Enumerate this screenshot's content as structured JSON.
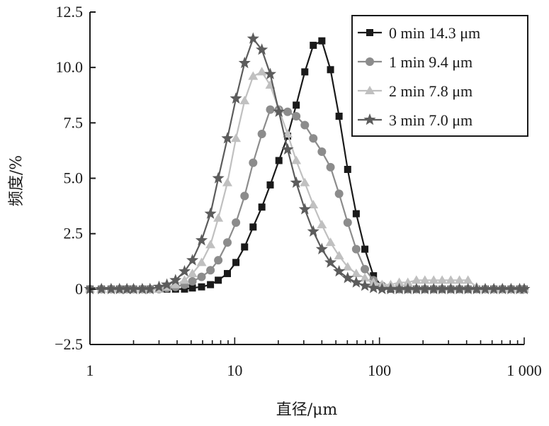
{
  "chart_data": {
    "type": "line",
    "title": "",
    "xlabel": "直径/μm",
    "ylabel": "频度/%",
    "x_scale": "log",
    "xlim": [
      1,
      1000
    ],
    "ylim": [
      -2.5,
      12.5
    ],
    "x_tick_labels": [
      "1",
      "10",
      "100",
      "1 000"
    ],
    "y_tick_labels": [
      "12.5",
      "10.0",
      "7.5",
      "5.0",
      "2.5",
      "0",
      "−2.5"
    ],
    "legend_position": "top-right",
    "series": [
      {
        "name": "0 min 14.3 μm",
        "color": "#1a1a1a",
        "marker": "square",
        "points": [
          [
            1,
            0
          ],
          [
            1.2,
            0
          ],
          [
            1.4,
            0
          ],
          [
            1.6,
            0
          ],
          [
            1.8,
            0
          ],
          [
            2.0,
            0
          ],
          [
            2.3,
            0
          ],
          [
            2.6,
            0
          ],
          [
            3.0,
            0
          ],
          [
            3.4,
            0
          ],
          [
            3.9,
            0
          ],
          [
            4.5,
            0
          ],
          [
            5.1,
            0.05
          ],
          [
            5.9,
            0.1
          ],
          [
            6.8,
            0.2
          ],
          [
            7.7,
            0.4
          ],
          [
            8.9,
            0.7
          ],
          [
            10.2,
            1.2
          ],
          [
            11.7,
            1.9
          ],
          [
            13.4,
            2.8
          ],
          [
            15.4,
            3.7
          ],
          [
            17.6,
            4.7
          ],
          [
            20.2,
            5.8
          ],
          [
            23.2,
            6.9
          ],
          [
            26.6,
            8.3
          ],
          [
            30.5,
            9.8
          ],
          [
            34.9,
            11.0
          ],
          [
            40.0,
            11.2
          ],
          [
            45.9,
            9.9
          ],
          [
            52.6,
            7.8
          ],
          [
            60.3,
            5.4
          ],
          [
            69.1,
            3.4
          ],
          [
            79.3,
            1.8
          ],
          [
            90.9,
            0.6
          ],
          [
            104.2,
            0.1
          ],
          [
            119.5,
            0
          ],
          [
            137,
            0
          ],
          [
            157,
            0
          ],
          [
            180,
            0
          ],
          [
            206,
            0
          ],
          [
            237,
            0
          ],
          [
            271,
            0
          ],
          [
            311,
            0
          ],
          [
            357,
            0
          ],
          [
            409,
            0
          ],
          [
            469,
            0
          ],
          [
            538,
            0
          ],
          [
            617,
            0
          ],
          [
            707,
            0
          ],
          [
            811,
            0
          ],
          [
            930,
            0
          ],
          [
            1000,
            0
          ]
        ]
      },
      {
        "name": "1 min 9.4 μm",
        "color": "#8c8c8c",
        "marker": "circle",
        "points": [
          [
            1,
            0
          ],
          [
            1.2,
            0
          ],
          [
            1.4,
            0
          ],
          [
            1.6,
            0
          ],
          [
            1.8,
            0
          ],
          [
            2.0,
            0
          ],
          [
            2.3,
            0
          ],
          [
            2.6,
            0
          ],
          [
            3.0,
            0
          ],
          [
            3.4,
            0.05
          ],
          [
            3.9,
            0.1
          ],
          [
            4.5,
            0.2
          ],
          [
            5.1,
            0.35
          ],
          [
            5.9,
            0.55
          ],
          [
            6.8,
            0.85
          ],
          [
            7.7,
            1.3
          ],
          [
            8.9,
            2.1
          ],
          [
            10.2,
            3.0
          ],
          [
            11.7,
            4.2
          ],
          [
            13.4,
            5.7
          ],
          [
            15.4,
            7.0
          ],
          [
            17.6,
            8.1
          ],
          [
            20.2,
            8.1
          ],
          [
            23.2,
            8.0
          ],
          [
            26.6,
            7.8
          ],
          [
            30.5,
            7.4
          ],
          [
            34.9,
            6.8
          ],
          [
            40.0,
            6.2
          ],
          [
            45.9,
            5.5
          ],
          [
            52.6,
            4.3
          ],
          [
            60.3,
            3.0
          ],
          [
            69.1,
            1.8
          ],
          [
            79.3,
            0.9
          ],
          [
            90.9,
            0.4
          ],
          [
            104.2,
            0.15
          ],
          [
            119.5,
            0.05
          ],
          [
            137,
            0
          ],
          [
            157,
            0
          ],
          [
            180,
            0
          ],
          [
            206,
            0
          ],
          [
            237,
            0
          ],
          [
            271,
            0
          ],
          [
            311,
            0
          ],
          [
            357,
            0
          ],
          [
            409,
            0
          ],
          [
            469,
            0
          ],
          [
            538,
            0
          ],
          [
            617,
            0
          ],
          [
            707,
            0
          ],
          [
            811,
            0
          ],
          [
            930,
            0
          ],
          [
            1000,
            0
          ]
        ]
      },
      {
        "name": "2 min 7.8 μm",
        "color": "#c0c0c0",
        "marker": "triangle",
        "points": [
          [
            1,
            0
          ],
          [
            1.2,
            0
          ],
          [
            1.4,
            0
          ],
          [
            1.6,
            0
          ],
          [
            1.8,
            0
          ],
          [
            2.0,
            0
          ],
          [
            2.3,
            0
          ],
          [
            2.6,
            0
          ],
          [
            3.0,
            0
          ],
          [
            3.4,
            0.1
          ],
          [
            3.9,
            0.2
          ],
          [
            4.5,
            0.4
          ],
          [
            5.1,
            0.7
          ],
          [
            5.9,
            1.2
          ],
          [
            6.8,
            2.0
          ],
          [
            7.7,
            3.2
          ],
          [
            8.9,
            4.8
          ],
          [
            10.2,
            6.8
          ],
          [
            11.7,
            8.5
          ],
          [
            13.4,
            9.6
          ],
          [
            15.4,
            9.8
          ],
          [
            17.6,
            9.2
          ],
          [
            20.2,
            8.1
          ],
          [
            23.2,
            7.0
          ],
          [
            26.6,
            5.8
          ],
          [
            30.5,
            4.8
          ],
          [
            34.9,
            3.8
          ],
          [
            40.0,
            2.9
          ],
          [
            45.9,
            2.1
          ],
          [
            52.6,
            1.5
          ],
          [
            60.3,
            1.0
          ],
          [
            69.1,
            0.7
          ],
          [
            79.3,
            0.5
          ],
          [
            90.9,
            0.3
          ],
          [
            104.2,
            0.2
          ],
          [
            119.5,
            0.2
          ],
          [
            137,
            0.3
          ],
          [
            157,
            0.3
          ],
          [
            180,
            0.4
          ],
          [
            206,
            0.4
          ],
          [
            237,
            0.4
          ],
          [
            271,
            0.4
          ],
          [
            311,
            0.4
          ],
          [
            357,
            0.4
          ],
          [
            409,
            0.4
          ],
          [
            469,
            0.1
          ],
          [
            538,
            0
          ],
          [
            617,
            0
          ],
          [
            707,
            0
          ],
          [
            811,
            0
          ],
          [
            930,
            0
          ],
          [
            1000,
            0
          ]
        ]
      },
      {
        "name": "3 min 7.0 μm",
        "color": "#5c5c5c",
        "marker": "star",
        "points": [
          [
            1,
            0
          ],
          [
            1.2,
            0
          ],
          [
            1.4,
            0
          ],
          [
            1.6,
            0
          ],
          [
            1.8,
            0
          ],
          [
            2.0,
            0
          ],
          [
            2.3,
            0
          ],
          [
            2.6,
            0
          ],
          [
            3.0,
            0.1
          ],
          [
            3.4,
            0.2
          ],
          [
            3.9,
            0.4
          ],
          [
            4.5,
            0.8
          ],
          [
            5.1,
            1.3
          ],
          [
            5.9,
            2.2
          ],
          [
            6.8,
            3.4
          ],
          [
            7.7,
            5.0
          ],
          [
            8.9,
            6.8
          ],
          [
            10.2,
            8.6
          ],
          [
            11.7,
            10.2
          ],
          [
            13.4,
            11.3
          ],
          [
            15.4,
            10.8
          ],
          [
            17.6,
            9.7
          ],
          [
            20.2,
            8.0
          ],
          [
            23.2,
            6.3
          ],
          [
            26.6,
            4.8
          ],
          [
            30.5,
            3.6
          ],
          [
            34.9,
            2.6
          ],
          [
            40.0,
            1.8
          ],
          [
            45.9,
            1.2
          ],
          [
            52.6,
            0.8
          ],
          [
            60.3,
            0.5
          ],
          [
            69.1,
            0.3
          ],
          [
            79.3,
            0.15
          ],
          [
            90.9,
            0.05
          ],
          [
            104.2,
            0
          ],
          [
            119.5,
            0
          ],
          [
            137,
            0
          ],
          [
            157,
            0
          ],
          [
            180,
            0
          ],
          [
            206,
            0
          ],
          [
            237,
            0
          ],
          [
            271,
            0
          ],
          [
            311,
            0
          ],
          [
            357,
            0
          ],
          [
            409,
            0
          ],
          [
            469,
            0
          ],
          [
            538,
            0
          ],
          [
            617,
            0
          ],
          [
            707,
            0
          ],
          [
            811,
            0
          ],
          [
            930,
            0
          ],
          [
            1000,
            0
          ]
        ]
      }
    ]
  }
}
